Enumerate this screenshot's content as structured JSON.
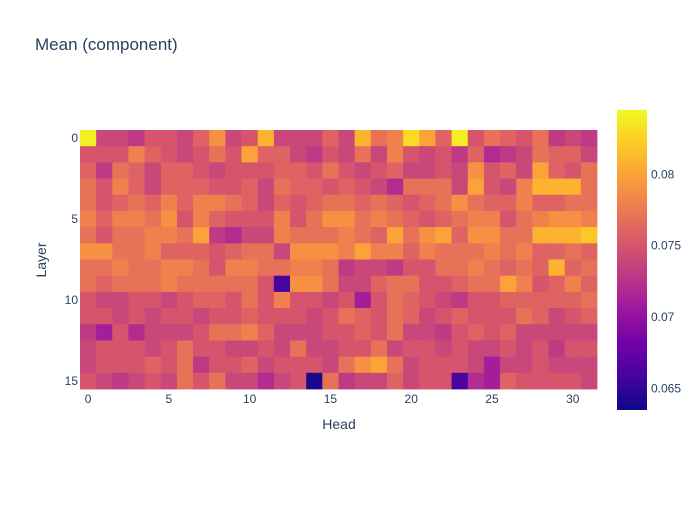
{
  "chart_data": {
    "type": "heatmap",
    "title": "Mean (component)",
    "xlabel": "Head",
    "ylabel": "Layer",
    "x_ticks": [
      0,
      5,
      10,
      15,
      20,
      25,
      30
    ],
    "y_ticks": [
      0,
      5,
      10,
      15
    ],
    "n_cols": 32,
    "n_rows": 16,
    "colorscale": "plasma",
    "zmin": 0.0635,
    "zmax": 0.0845,
    "colorbar_ticks": [
      0.065,
      0.07,
      0.075,
      0.08
    ],
    "colorbar_tick_labels": [
      "0.065",
      "0.07",
      "0.075",
      "0.08"
    ],
    "z": [
      [
        0.084,
        0.074,
        0.074,
        0.073,
        0.075,
        0.075,
        0.074,
        0.076,
        0.079,
        0.074,
        0.075,
        0.081,
        0.074,
        0.074,
        0.074,
        0.076,
        0.074,
        0.081,
        0.077,
        0.078,
        0.083,
        0.08,
        0.076,
        0.084,
        0.075,
        0.077,
        0.076,
        0.075,
        0.077,
        0.073,
        0.074,
        0.073
      ],
      [
        0.075,
        0.075,
        0.075,
        0.078,
        0.076,
        0.075,
        0.074,
        0.075,
        0.077,
        0.075,
        0.08,
        0.076,
        0.076,
        0.074,
        0.073,
        0.075,
        0.074,
        0.077,
        0.074,
        0.078,
        0.075,
        0.074,
        0.075,
        0.073,
        0.076,
        0.072,
        0.073,
        0.074,
        0.077,
        0.076,
        0.076,
        0.074
      ],
      [
        0.076,
        0.073,
        0.077,
        0.076,
        0.074,
        0.076,
        0.076,
        0.075,
        0.074,
        0.075,
        0.075,
        0.075,
        0.076,
        0.076,
        0.075,
        0.077,
        0.075,
        0.074,
        0.075,
        0.076,
        0.074,
        0.074,
        0.075,
        0.074,
        0.079,
        0.075,
        0.076,
        0.074,
        0.08,
        0.076,
        0.075,
        0.077
      ],
      [
        0.077,
        0.075,
        0.078,
        0.076,
        0.074,
        0.076,
        0.076,
        0.076,
        0.075,
        0.075,
        0.076,
        0.074,
        0.077,
        0.076,
        0.076,
        0.075,
        0.076,
        0.075,
        0.074,
        0.072,
        0.077,
        0.077,
        0.077,
        0.074,
        0.08,
        0.075,
        0.074,
        0.078,
        0.081,
        0.081,
        0.081,
        0.077
      ],
      [
        0.077,
        0.075,
        0.076,
        0.077,
        0.076,
        0.078,
        0.076,
        0.078,
        0.078,
        0.077,
        0.076,
        0.074,
        0.076,
        0.075,
        0.076,
        0.077,
        0.077,
        0.076,
        0.077,
        0.076,
        0.075,
        0.076,
        0.077,
        0.079,
        0.077,
        0.076,
        0.076,
        0.078,
        0.076,
        0.076,
        0.077,
        0.077
      ],
      [
        0.078,
        0.076,
        0.078,
        0.078,
        0.077,
        0.079,
        0.075,
        0.078,
        0.076,
        0.075,
        0.075,
        0.075,
        0.078,
        0.075,
        0.077,
        0.079,
        0.079,
        0.077,
        0.078,
        0.077,
        0.076,
        0.075,
        0.076,
        0.077,
        0.078,
        0.078,
        0.075,
        0.077,
        0.078,
        0.079,
        0.079,
        0.078
      ],
      [
        0.077,
        0.075,
        0.077,
        0.077,
        0.078,
        0.078,
        0.077,
        0.08,
        0.073,
        0.072,
        0.074,
        0.074,
        0.078,
        0.077,
        0.077,
        0.077,
        0.078,
        0.077,
        0.076,
        0.08,
        0.077,
        0.079,
        0.08,
        0.076,
        0.079,
        0.079,
        0.077,
        0.077,
        0.081,
        0.081,
        0.081,
        0.082
      ],
      [
        0.079,
        0.079,
        0.077,
        0.077,
        0.078,
        0.076,
        0.076,
        0.076,
        0.075,
        0.076,
        0.077,
        0.077,
        0.074,
        0.079,
        0.079,
        0.079,
        0.078,
        0.08,
        0.078,
        0.078,
        0.076,
        0.078,
        0.077,
        0.077,
        0.077,
        0.078,
        0.077,
        0.078,
        0.076,
        0.076,
        0.077,
        0.076
      ],
      [
        0.077,
        0.077,
        0.078,
        0.077,
        0.077,
        0.078,
        0.078,
        0.077,
        0.075,
        0.078,
        0.078,
        0.077,
        0.077,
        0.078,
        0.078,
        0.077,
        0.073,
        0.074,
        0.074,
        0.073,
        0.075,
        0.075,
        0.077,
        0.077,
        0.078,
        0.077,
        0.076,
        0.077,
        0.076,
        0.081,
        0.076,
        0.077
      ],
      [
        0.077,
        0.076,
        0.077,
        0.077,
        0.077,
        0.078,
        0.077,
        0.077,
        0.077,
        0.077,
        0.077,
        0.075,
        0.066,
        0.079,
        0.079,
        0.077,
        0.074,
        0.074,
        0.076,
        0.077,
        0.077,
        0.075,
        0.075,
        0.076,
        0.077,
        0.077,
        0.08,
        0.078,
        0.075,
        0.076,
        0.078,
        0.076
      ],
      [
        0.075,
        0.074,
        0.074,
        0.075,
        0.075,
        0.074,
        0.075,
        0.076,
        0.076,
        0.075,
        0.077,
        0.075,
        0.078,
        0.075,
        0.075,
        0.074,
        0.075,
        0.071,
        0.075,
        0.077,
        0.076,
        0.075,
        0.074,
        0.073,
        0.075,
        0.075,
        0.076,
        0.076,
        0.076,
        0.076,
        0.076,
        0.077
      ],
      [
        0.075,
        0.075,
        0.074,
        0.075,
        0.074,
        0.075,
        0.075,
        0.074,
        0.075,
        0.075,
        0.076,
        0.075,
        0.075,
        0.075,
        0.074,
        0.075,
        0.077,
        0.076,
        0.075,
        0.077,
        0.076,
        0.074,
        0.075,
        0.076,
        0.075,
        0.075,
        0.075,
        0.077,
        0.076,
        0.074,
        0.075,
        0.076
      ],
      [
        0.073,
        0.071,
        0.075,
        0.072,
        0.074,
        0.074,
        0.074,
        0.075,
        0.077,
        0.077,
        0.078,
        0.076,
        0.074,
        0.074,
        0.074,
        0.075,
        0.075,
        0.076,
        0.075,
        0.077,
        0.074,
        0.074,
        0.073,
        0.075,
        0.076,
        0.075,
        0.076,
        0.074,
        0.074,
        0.074,
        0.074,
        0.074
      ],
      [
        0.074,
        0.075,
        0.075,
        0.075,
        0.074,
        0.075,
        0.077,
        0.075,
        0.075,
        0.074,
        0.074,
        0.075,
        0.074,
        0.077,
        0.074,
        0.074,
        0.075,
        0.075,
        0.077,
        0.074,
        0.075,
        0.075,
        0.074,
        0.075,
        0.074,
        0.074,
        0.075,
        0.074,
        0.075,
        0.073,
        0.075,
        0.075
      ],
      [
        0.074,
        0.075,
        0.075,
        0.075,
        0.076,
        0.075,
        0.077,
        0.073,
        0.075,
        0.075,
        0.076,
        0.074,
        0.075,
        0.075,
        0.075,
        0.074,
        0.077,
        0.079,
        0.08,
        0.077,
        0.074,
        0.075,
        0.075,
        0.075,
        0.074,
        0.071,
        0.074,
        0.074,
        0.075,
        0.074,
        0.074,
        0.074
      ],
      [
        0.075,
        0.074,
        0.073,
        0.074,
        0.075,
        0.074,
        0.077,
        0.075,
        0.077,
        0.074,
        0.074,
        0.072,
        0.074,
        0.075,
        0.064,
        0.077,
        0.073,
        0.074,
        0.074,
        0.076,
        0.074,
        0.075,
        0.075,
        0.066,
        0.072,
        0.071,
        0.076,
        0.075,
        0.075,
        0.075,
        0.075,
        0.074
      ]
    ]
  }
}
